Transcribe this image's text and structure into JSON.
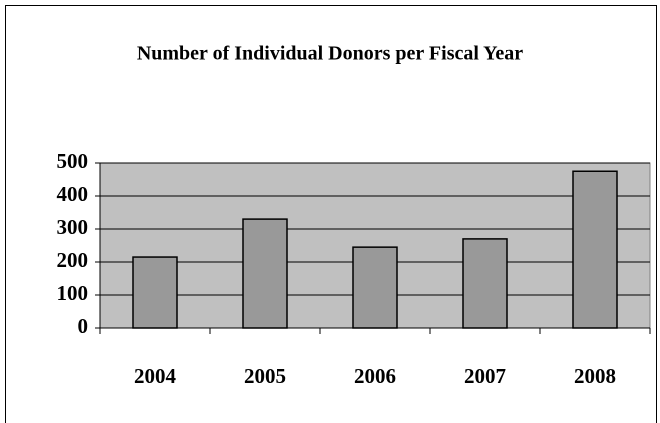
{
  "chart_data": {
    "type": "bar",
    "title": "Number of Individual Donors per Fiscal Year",
    "categories": [
      "2004",
      "2005",
      "2006",
      "2007",
      "2008"
    ],
    "values": [
      215,
      330,
      245,
      270,
      475
    ],
    "color": "#999999",
    "background": "#c0c0c0",
    "ylim": [
      0,
      500
    ],
    "yticks": [
      0,
      100,
      200,
      300,
      400,
      500
    ],
    "grid": true
  }
}
